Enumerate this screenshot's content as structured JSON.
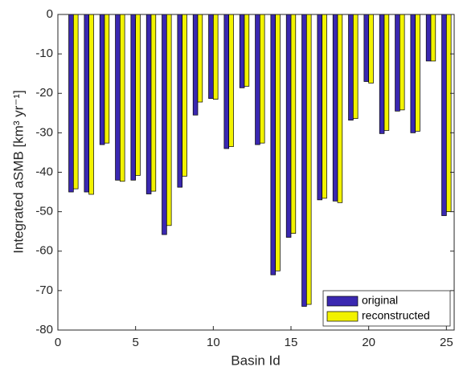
{
  "chart_data": {
    "type": "bar",
    "x": [
      1,
      2,
      3,
      4,
      5,
      6,
      7,
      8,
      9,
      10,
      11,
      12,
      13,
      14,
      15,
      16,
      17,
      18,
      19,
      20,
      21,
      22,
      23,
      24,
      25
    ],
    "series": [
      {
        "name": "original",
        "color": "#3a28b0",
        "values": [
          -45,
          -45,
          -33,
          -42,
          -42,
          -45.5,
          -55.8,
          -43.8,
          -25.5,
          -21.3,
          -34,
          -18.6,
          -33,
          -66,
          -56.5,
          -74,
          -47,
          -47.3,
          -26.8,
          -17,
          -30.2,
          -24.5,
          -30,
          -11.8,
          -51
        ]
      },
      {
        "name": "reconstructed",
        "color": "#f2f200",
        "values": [
          -44.2,
          -45.6,
          -32.6,
          -42.3,
          -40.8,
          -44.8,
          -53.5,
          -41,
          -22.2,
          -21.5,
          -33.5,
          -18.2,
          -32.6,
          -65,
          -55.5,
          -73.5,
          -46.6,
          -47.7,
          -26.4,
          -17.4,
          -29.4,
          -24.2,
          -29.6,
          -11.8,
          -50
        ]
      }
    ],
    "xlabel": "Basin Id",
    "ylabel": "Integrated aSMB [km³ yr⁻¹]",
    "xlim": [
      0,
      25.5
    ],
    "xticks": [
      0,
      5,
      10,
      15,
      20,
      25
    ],
    "ylim": [
      -80,
      0
    ],
    "yticks": [
      -80,
      -70,
      -60,
      -50,
      -40,
      -30,
      -20,
      -10,
      0
    ],
    "legend": "lower right"
  }
}
